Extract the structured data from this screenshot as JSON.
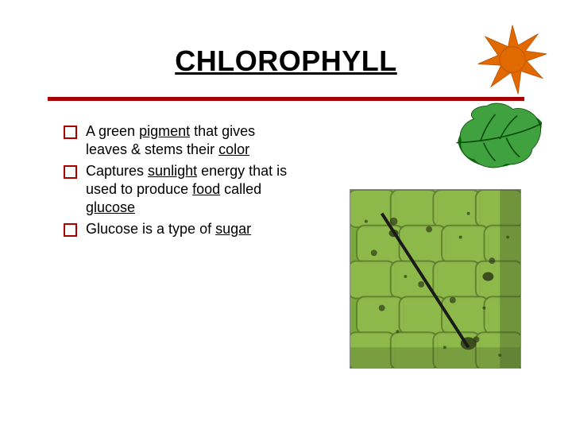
{
  "title": "CHLOROPHYLL",
  "title_color": "#000000",
  "rule_color": "#a80000",
  "bullet_border_color": "#a80000",
  "bullets": [
    {
      "pre": "A green ",
      "u1": "pigment",
      "mid1": " that gives leaves & stems their ",
      "u2": "color",
      "mid2": "",
      "u3": "",
      "mid3": "",
      "u4": "",
      "post": ""
    },
    {
      "pre": "Captures ",
      "u1": "sunlight",
      "mid1": " energy that is used to produce ",
      "u2": "food",
      "mid2": " called ",
      "u3": "glucose",
      "mid3": "",
      "u4": "",
      "post": ""
    },
    {
      "pre": "Glucose is a type of ",
      "u1": "sugar",
      "mid1": "",
      "u2": "",
      "mid2": "",
      "u3": "",
      "mid3": "",
      "u4": "",
      "post": ""
    }
  ],
  "sun": {
    "fill": "#e06900",
    "stroke": "#c05500"
  },
  "leaf": {
    "fill_light": "#3fa23f",
    "fill_dark": "#0e6b0e",
    "vein": "#0a4a0a"
  },
  "microscope": {
    "bg": "#7aa83a",
    "cell_fill": "#8fbb4c",
    "cell_wall": "#5e7f2f",
    "dark_spot": "#2e3a18",
    "shadow": "#3d4f22",
    "needle": "#1a1a1a"
  }
}
